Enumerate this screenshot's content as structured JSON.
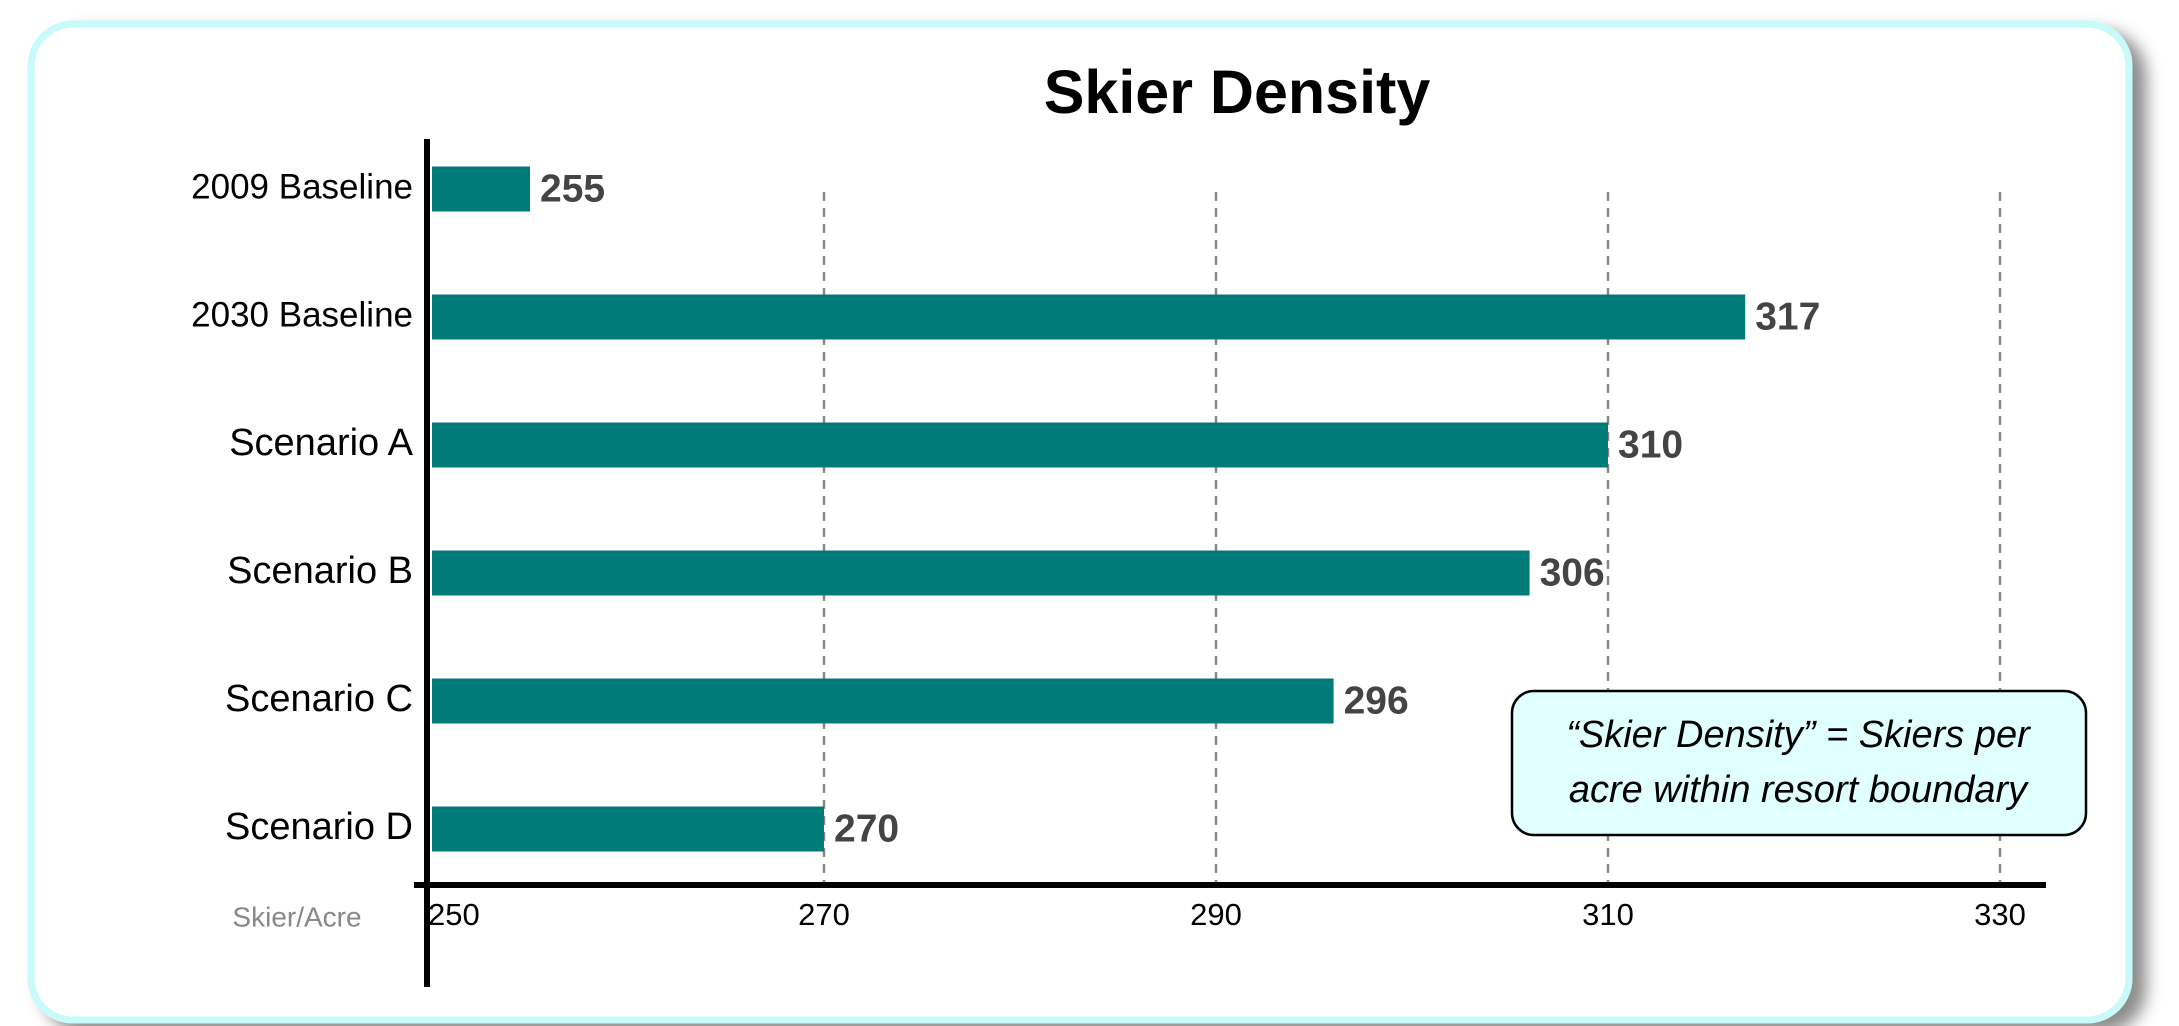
{
  "chart_data": {
    "type": "bar",
    "orientation": "horizontal",
    "title": "Skier Density",
    "categories": [
      "2009 Baseline",
      "2030 Baseline",
      "Scenario A",
      "Scenario B",
      "Scenario C",
      "Scenario D"
    ],
    "values": [
      255,
      317,
      310,
      306,
      296,
      270
    ],
    "color": "#007b78",
    "xlim": [
      250,
      330
    ],
    "xticks": [
      250,
      270,
      290,
      310,
      330
    ],
    "grid": true,
    "xlabel": "Skier/Acre",
    "annotation": [
      "“Skier Density” = Skiers per",
      "acre within resort boundary"
    ]
  }
}
